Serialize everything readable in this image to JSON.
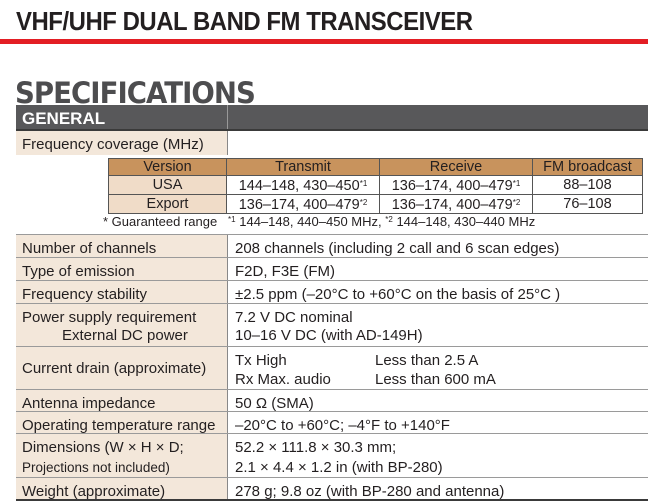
{
  "title": "VHF/UHF DUAL BAND FM TRANSCEIVER",
  "heading": "SPECIFICATIONS",
  "section": "GENERAL",
  "freq_label": "Frequency coverage (MHz)",
  "freq_table": {
    "headers": [
      "Version",
      "Transmit",
      "Receive",
      "FM broadcast"
    ],
    "rows": [
      {
        "version": "USA",
        "transmit": "144–148, 430–450",
        "transmit_note": "*1",
        "receive": "136–174, 400–479",
        "receive_note": "*1",
        "fm": "88–108"
      },
      {
        "version": "Export",
        "transmit": "136–174, 400–479",
        "transmit_note": "*2",
        "receive": "136–174, 400–479",
        "receive_note": "*2",
        "fm": "76–108"
      }
    ]
  },
  "note": {
    "star": "* Guaranteed range",
    "n1": "*1",
    "t1": "144–148, 440–450 MHz,",
    "n2": "*2",
    "t2": "144–148, 430–440 MHz"
  },
  "specs": [
    {
      "label": "Number of channels",
      "value": "208 channels (including 2 call and 6 scan edges)"
    },
    {
      "label": "Type of emission",
      "value": "F2D, F3E (FM)"
    },
    {
      "label": "Frequency stability",
      "value": "±2.5 ppm (–20°C to +60°C on the basis of 25°C )"
    },
    {
      "label": "Power supply requirement",
      "label2": "External DC power",
      "value": "7.2 V DC nominal",
      "value2": "10–16 V DC (with AD-149H)"
    },
    {
      "label": "Current drain (approximate)",
      "a1": "Tx High",
      "b1": "Less than 2.5 A",
      "a2": "Rx Max. audio",
      "b2": "Less than 600 mA"
    },
    {
      "label": "Antenna impedance",
      "value": "50 Ω (SMA)"
    },
    {
      "label": "Operating temperature range",
      "value": "–20°C to +60°C; –4°F to +140°F"
    },
    {
      "label": "Dimensions (W × H × D;",
      "label2": "Projections not included)",
      "value": "52.2 × 111.8 × 30.3 mm;",
      "value2": "2.1 × 4.4 × 1.2 in (with BP-280)"
    },
    {
      "label": "Weight (approximate)",
      "value": "278 g; 9.8 oz (with BP-280 and antenna)"
    }
  ],
  "colors": {
    "accent": "#e31e24",
    "header_bg": "#58585a",
    "label_bg": "#f3e7da",
    "table_header": "#c8935d"
  }
}
